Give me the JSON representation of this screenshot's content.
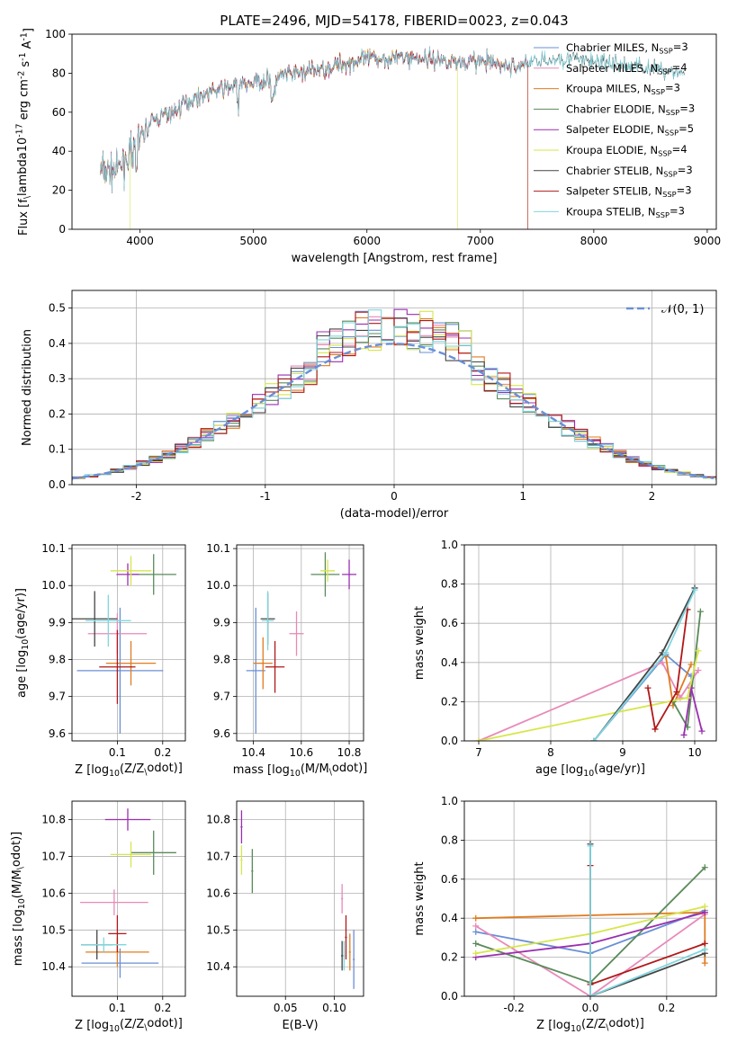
{
  "colors": {
    "Chabrier MILES": "#6a8fd6",
    "Salpeter MILES": "#e889b8",
    "Kroupa MILES": "#e07b1f",
    "Chabrier ELODIE": "#5a8a5a",
    "Salpeter ELODIE": "#9a2fb0",
    "Kroupa ELODIE": "#d6e64a",
    "Chabrier STELIB": "#444444",
    "Salpeter STELIB": "#b01818",
    "Kroupa STELIB": "#7fd6df"
  },
  "chart_data": [
    {
      "id": "spectrum",
      "type": "line",
      "title": "PLATE=2496, MJD=54178, FIBERID=0023, z=0.043",
      "xlabel": "wavelength [Angstrom, rest frame]",
      "ylabel": "Flux [f$_\\lambda$10$^{-17}$ erg cm$^{-2}$ s$^{-1}$ A$^{-1}$]",
      "xlim": [
        3400,
        9080
      ],
      "ylim": [
        0,
        100
      ],
      "xticks": [
        4000,
        5000,
        6000,
        7000,
        8000,
        9000
      ],
      "yticks": [
        0,
        20,
        40,
        60,
        80,
        100
      ],
      "grid": false,
      "legend_position": "right",
      "legend": [
        {
          "label": "Chabrier MILES, N",
          "sub": "SSP",
          "tail": "=3",
          "key": "Chabrier MILES"
        },
        {
          "label": "Salpeter MILES, N",
          "sub": "SSP",
          "tail": "=4",
          "key": "Salpeter MILES"
        },
        {
          "label": "Kroupa MILES, N",
          "sub": "SSP",
          "tail": "=3",
          "key": "Kroupa MILES"
        },
        {
          "label": "Chabrier ELODIE, N",
          "sub": "SSP",
          "tail": "=3",
          "key": "Chabrier ELODIE"
        },
        {
          "label": "Salpeter ELODIE, N",
          "sub": "SSP",
          "tail": "=5",
          "key": "Salpeter ELODIE"
        },
        {
          "label": "Kroupa ELODIE, N",
          "sub": "SSP",
          "tail": "=4",
          "key": "Kroupa ELODIE"
        },
        {
          "label": "Chabrier STELIB, N",
          "sub": "SSP",
          "tail": "=3",
          "key": "Chabrier STELIB"
        },
        {
          "label": "Salpeter STELIB, N",
          "sub": "SSP",
          "tail": "=3",
          "key": "Salpeter STELIB"
        },
        {
          "label": "Kroupa STELIB, N",
          "sub": "SSP",
          "tail": "=3",
          "key": "Kroupa STELIB"
        }
      ],
      "continuum": [
        [
          3650,
          30
        ],
        [
          3800,
          30
        ],
        [
          3900,
          38
        ],
        [
          4000,
          47
        ],
        [
          4100,
          55
        ],
        [
          4200,
          58
        ],
        [
          4300,
          60
        ],
        [
          4400,
          65
        ],
        [
          4600,
          70
        ],
        [
          4800,
          73
        ],
        [
          5000,
          75
        ],
        [
          5200,
          78
        ],
        [
          5400,
          80
        ],
        [
          5600,
          82
        ],
        [
          5800,
          85
        ],
        [
          6000,
          87
        ],
        [
          6200,
          88
        ],
        [
          6400,
          88
        ],
        [
          6600,
          87
        ],
        [
          6800,
          86
        ],
        [
          7000,
          86
        ],
        [
          7100,
          85
        ],
        [
          7300,
          83
        ],
        [
          7500,
          87
        ],
        [
          7700,
          88
        ],
        [
          8000,
          86
        ],
        [
          8300,
          84
        ],
        [
          8600,
          82
        ],
        [
          8800,
          80
        ]
      ],
      "drops": [
        {
          "series": "Kroupa ELODIE",
          "x": 3910,
          "to": 0
        },
        {
          "series": "Kroupa ELODIE",
          "x": 6800,
          "to": 0
        },
        {
          "series": "Kroupa MILES",
          "x": 7420,
          "to": 0
        },
        {
          "series": "Salpeter STELIB",
          "x": 7420,
          "to": 0
        }
      ],
      "series_end": {
        "Chabrier MILES": 7420,
        "Salpeter MILES": 7420,
        "Kroupa MILES": 7420,
        "Chabrier ELODIE": 6800,
        "Salpeter ELODIE": 6800,
        "Kroupa ELODIE": 6800,
        "Chabrier STELIB": 8800,
        "Salpeter STELIB": 7420,
        "Kroupa STELIB": 8800
      }
    },
    {
      "id": "residuals",
      "type": "histogram",
      "xlabel": "(data-model)/error",
      "ylabel": "Normed distribution",
      "xlim": [
        -2.5,
        2.5
      ],
      "ylim": [
        0,
        0.55
      ],
      "xticks": [
        -2,
        -1,
        0,
        1,
        2
      ],
      "yticks": [
        0.0,
        0.1,
        0.2,
        0.3,
        0.4,
        0.5
      ],
      "grid": true,
      "legend": "$\\mathcal{N}(0,1)$",
      "legend_position": "top-right",
      "bin_width": 0.1
    },
    {
      "id": "age-vs-Z",
      "type": "errorbar",
      "xlabel": "Z [log$_{10}$(Z/Z$_\\odot$)]",
      "ylabel": "age  [log$_{10}$(age/yr)]",
      "xlim": [
        0.0,
        0.25
      ],
      "ylim": [
        9.58,
        10.11
      ],
      "xticks": [
        0.1,
        0.2
      ],
      "yticks": [
        9.6,
        9.7,
        9.8,
        9.9,
        10.0,
        10.1
      ],
      "grid": true,
      "points": [
        {
          "series": "Chabrier MILES",
          "x": 0.106,
          "xerr": 0.095,
          "y": 9.77,
          "yerr": 0.17
        },
        {
          "series": "Salpeter MILES",
          "x": 0.1,
          "xerr": 0.065,
          "y": 9.87,
          "yerr": 0.055
        },
        {
          "series": "Kroupa MILES",
          "x": 0.13,
          "xerr": 0.055,
          "y": 9.79,
          "yerr": 0.06
        },
        {
          "series": "Chabrier ELODIE",
          "x": 0.18,
          "xerr": 0.05,
          "y": 10.03,
          "yerr": 0.055
        },
        {
          "series": "Salpeter ELODIE",
          "x": 0.123,
          "xerr": 0.025,
          "y": 10.03,
          "yerr": 0.03
        },
        {
          "series": "Kroupa ELODIE",
          "x": 0.13,
          "xerr": 0.045,
          "y": 10.04,
          "yerr": 0.04
        },
        {
          "series": "Chabrier STELIB",
          "x": 0.05,
          "xerr": 0.05,
          "y": 9.91,
          "yerr": 0.075
        },
        {
          "series": "Salpeter STELIB",
          "x": 0.1,
          "xerr": 0.04,
          "y": 9.78,
          "yerr": 0.1
        },
        {
          "series": "Kroupa STELIB",
          "x": 0.08,
          "xerr": 0.05,
          "y": 9.905,
          "yerr": 0.07
        }
      ]
    },
    {
      "id": "age-vs-mass",
      "type": "errorbar",
      "xlabel": "mass [log$_{10}$(M/M$_\\odot$)]",
      "ylabel": "",
      "xlim": [
        10.33,
        10.86
      ],
      "ylim": [
        9.58,
        10.11
      ],
      "xticks": [
        10.4,
        10.6,
        10.8
      ],
      "yticks": [
        9.6,
        9.7,
        9.8,
        9.9,
        10.0,
        10.1
      ],
      "grid": true,
      "points": [
        {
          "series": "Chabrier MILES",
          "x": 10.41,
          "xerr": 0.04,
          "y": 9.77,
          "yerr": 0.17
        },
        {
          "series": "Salpeter MILES",
          "x": 10.58,
          "xerr": 0.03,
          "y": 9.87,
          "yerr": 0.06
        },
        {
          "series": "Kroupa MILES",
          "x": 10.44,
          "xerr": 0.04,
          "y": 9.79,
          "yerr": 0.07
        },
        {
          "series": "Chabrier ELODIE",
          "x": 10.7,
          "xerr": 0.06,
          "y": 10.03,
          "yerr": 0.06
        },
        {
          "series": "Salpeter ELODIE",
          "x": 10.8,
          "xerr": 0.03,
          "y": 10.03,
          "yerr": 0.04
        },
        {
          "series": "Kroupa ELODIE",
          "x": 10.71,
          "xerr": 0.03,
          "y": 10.04,
          "yerr": 0.03
        },
        {
          "series": "Chabrier STELIB",
          "x": 10.46,
          "xerr": 0.03,
          "y": 9.91,
          "yerr": 0.07
        },
        {
          "series": "Salpeter STELIB",
          "x": 10.49,
          "xerr": 0.04,
          "y": 9.78,
          "yerr": 0.07
        },
        {
          "series": "Kroupa STELIB",
          "x": 10.46,
          "xerr": 0.025,
          "y": 9.905,
          "yerr": 0.08
        }
      ]
    },
    {
      "id": "mass-weight-vs-age",
      "type": "line",
      "xlabel": "age  [log$_{10}$(age/yr)]",
      "ylabel": "mass weight",
      "xlim": [
        6.8,
        10.3
      ],
      "ylim": [
        0,
        1.0
      ],
      "xticks": [
        7,
        8,
        9,
        10
      ],
      "yticks": [
        0.0,
        0.2,
        0.4,
        0.6,
        0.8,
        1.0
      ],
      "grid": true,
      "series": [
        {
          "name": "Chabrier MILES",
          "x": [
            8.6,
            9.6,
            9.95
          ],
          "y": [
            0.0,
            0.44,
            0.33
          ]
        },
        {
          "name": "Salpeter MILES",
          "x": [
            7.0,
            9.55,
            9.8,
            10.05
          ],
          "y": [
            0.0,
            0.4,
            0.22,
            0.36
          ]
        },
        {
          "name": "Kroupa MILES",
          "x": [
            9.6,
            9.7,
            9.95
          ],
          "y": [
            0.43,
            0.18,
            0.39
          ]
        },
        {
          "name": "Chabrier ELODIE",
          "x": [
            9.7,
            9.9,
            10.08
          ],
          "y": [
            0.2,
            0.07,
            0.66
          ]
        },
        {
          "name": "Salpeter ELODIE",
          "x": [
            9.85,
            9.95,
            10.1
          ],
          "y": [
            0.03,
            0.27,
            0.05
          ]
        },
        {
          "name": "Kroupa ELODIE",
          "x": [
            7.0,
            9.9,
            10.05
          ],
          "y": [
            0.0,
            0.22,
            0.46
          ]
        },
        {
          "name": "Chabrier STELIB",
          "x": [
            8.6,
            9.55,
            10.0
          ],
          "y": [
            0.0,
            0.45,
            0.78
          ]
        },
        {
          "name": "Salpeter STELIB",
          "x": [
            9.35,
            9.45,
            9.75,
            9.9
          ],
          "y": [
            0.27,
            0.06,
            0.25,
            0.67
          ]
        },
        {
          "name": "Kroupa STELIB",
          "x": [
            8.6,
            9.6,
            10.0
          ],
          "y": [
            0.0,
            0.45,
            0.77
          ]
        }
      ]
    },
    {
      "id": "mass-vs-Z",
      "type": "errorbar",
      "xlabel": "Z [log$_{10}$(Z/Z$_\\odot$)]",
      "ylabel": "mass [log$_{10}$(M/M$_\\odot$)]",
      "xlim": [
        0.0,
        0.25
      ],
      "ylim": [
        10.32,
        10.85
      ],
      "xticks": [
        0.1,
        0.2
      ],
      "yticks": [
        10.4,
        10.5,
        10.6,
        10.7,
        10.8
      ],
      "grid": true,
      "points": [
        {
          "series": "Chabrier MILES",
          "x": 0.106,
          "xerr": 0.085,
          "y": 10.41,
          "yerr": 0.04
        },
        {
          "series": "Salpeter MILES",
          "x": 0.093,
          "xerr": 0.075,
          "y": 10.575,
          "yerr": 0.035
        },
        {
          "series": "Kroupa MILES",
          "x": 0.1,
          "xerr": 0.07,
          "y": 10.44,
          "yerr": 0.04
        },
        {
          "series": "Chabrier ELODIE",
          "x": 0.18,
          "xerr": 0.05,
          "y": 10.71,
          "yerr": 0.06
        },
        {
          "series": "Salpeter ELODIE",
          "x": 0.123,
          "xerr": 0.05,
          "y": 10.8,
          "yerr": 0.03
        },
        {
          "series": "Kroupa ELODIE",
          "x": 0.13,
          "xerr": 0.045,
          "y": 10.705,
          "yerr": 0.035
        },
        {
          "series": "Chabrier STELIB",
          "x": 0.055,
          "xerr": 0.035,
          "y": 10.46,
          "yerr": 0.04
        },
        {
          "series": "Salpeter STELIB",
          "x": 0.1,
          "xerr": 0.02,
          "y": 10.49,
          "yerr": 0.05
        },
        {
          "series": "Kroupa STELIB",
          "x": 0.07,
          "xerr": 0.05,
          "y": 10.46,
          "yerr": 0.02
        }
      ]
    },
    {
      "id": "mass-vs-ebv",
      "type": "errorbar",
      "xlabel": "E(B-V)",
      "ylabel": "",
      "xlim": [
        0.0,
        0.13
      ],
      "ylim": [
        10.32,
        10.85
      ],
      "xticks": [
        0.05,
        0.1
      ],
      "xticklabels": [
        "0.05",
        "0.10"
      ],
      "yticks": [
        10.4,
        10.5,
        10.6,
        10.7,
        10.8
      ],
      "grid": true,
      "points": [
        {
          "series": "Chabrier MILES",
          "x": 0.12,
          "xerr": 0.001,
          "y": 10.42,
          "yerr": 0.08
        },
        {
          "series": "Salpeter MILES",
          "x": 0.108,
          "xerr": 0.001,
          "y": 10.585,
          "yerr": 0.04
        },
        {
          "series": "Kroupa MILES",
          "x": 0.116,
          "xerr": 0.001,
          "y": 10.44,
          "yerr": 0.05
        },
        {
          "series": "Chabrier ELODIE",
          "x": 0.016,
          "xerr": 0.001,
          "y": 10.66,
          "yerr": 0.06
        },
        {
          "series": "Salpeter ELODIE",
          "x": 0.005,
          "xerr": 0.001,
          "y": 10.78,
          "yerr": 0.045
        },
        {
          "series": "Kroupa ELODIE",
          "x": 0.005,
          "xerr": 0.001,
          "y": 10.69,
          "yerr": 0.04
        },
        {
          "series": "Chabrier STELIB",
          "x": 0.108,
          "xerr": 0.001,
          "y": 10.43,
          "yerr": 0.04
        },
        {
          "series": "Salpeter STELIB",
          "x": 0.112,
          "xerr": 0.001,
          "y": 10.48,
          "yerr": 0.06
        },
        {
          "series": "Kroupa STELIB",
          "x": 0.11,
          "xerr": 0.001,
          "y": 10.43,
          "yerr": 0.04
        }
      ]
    },
    {
      "id": "mass-weight-vs-Z",
      "type": "line",
      "xlabel": "Z [log$_{10}$(Z/Z$_\\odot$)]",
      "ylabel": "mass weight",
      "xlim": [
        -0.33,
        0.33
      ],
      "ylim": [
        0,
        1.0
      ],
      "xticks": [
        -0.2,
        0.0,
        0.2
      ],
      "yticks": [
        0.0,
        0.2,
        0.4,
        0.6,
        0.8,
        1.0
      ],
      "grid": true,
      "series": [
        {
          "name": "Chabrier MILES",
          "x": [
            -0.3,
            0.0,
            0.3
          ],
          "y": [
            0.33,
            0.22,
            0.44
          ]
        },
        {
          "name": "Salpeter MILES",
          "x": [
            -0.3,
            0.0,
            0.3
          ],
          "y": [
            0.36,
            0.0,
            0.42
          ]
        },
        {
          "name": "Kroupa MILES",
          "x": [
            -0.3,
            0.3,
            0.3
          ],
          "y": [
            0.4,
            0.43,
            0.17
          ]
        },
        {
          "name": "Chabrier ELODIE",
          "x": [
            -0.3,
            0.0,
            0.3
          ],
          "y": [
            0.27,
            0.07,
            0.66
          ]
        },
        {
          "name": "Salpeter ELODIE",
          "x": [
            -0.3,
            0.0,
            0.3
          ],
          "y": [
            0.2,
            0.27,
            0.43
          ]
        },
        {
          "name": "Kroupa ELODIE",
          "x": [
            -0.3,
            0.0,
            0.3
          ],
          "y": [
            0.22,
            0.32,
            0.46
          ]
        },
        {
          "name": "Chabrier STELIB",
          "x": [
            0.0,
            0.0,
            0.3
          ],
          "y": [
            0.78,
            0.0,
            0.22
          ]
        },
        {
          "name": "Salpeter STELIB",
          "x": [
            0.0,
            0.0,
            0.3
          ],
          "y": [
            0.67,
            0.06,
            0.27
          ]
        },
        {
          "name": "Kroupa STELIB",
          "x": [
            0.0,
            0.0,
            0.3
          ],
          "y": [
            0.77,
            0.0,
            0.24
          ]
        }
      ]
    }
  ]
}
